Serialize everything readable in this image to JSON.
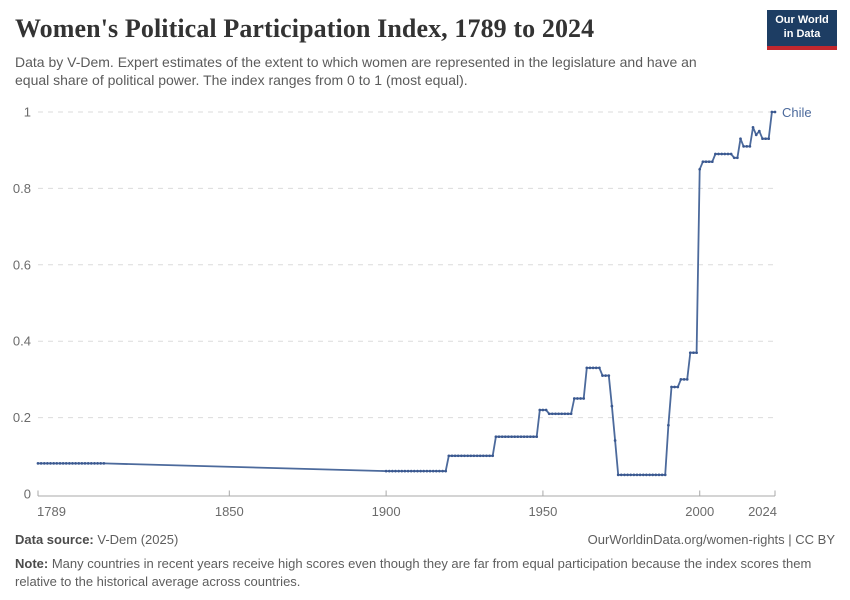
{
  "header": {
    "title": "Women's Political Participation Index, 1789 to 2024",
    "subtitle_lines": [
      "Data by V-Dem. Expert estimates of the extent to which women are represented in the legislature and have an",
      "equal share of political power. The index ranges from 0 to 1 (most equal)."
    ]
  },
  "logo": {
    "line1": "Our World",
    "line2": "in Data",
    "bg_color": "#1d3d63",
    "bar_color": "#c1272d"
  },
  "chart_data": {
    "type": "line",
    "title": "Women's Political Participation Index, 1789 to 2024",
    "xlabel": "",
    "ylabel": "",
    "xlim": [
      1789,
      2024
    ],
    "ylim": [
      0,
      1
    ],
    "grid": "horizontal-dashed",
    "legend_position": "end-of-line",
    "x_ticks": [
      {
        "year": 1789,
        "label": "1789",
        "align": "start"
      },
      {
        "year": 1850,
        "label": "1850",
        "align": "middle"
      },
      {
        "year": 1900,
        "label": "1900",
        "align": "middle"
      },
      {
        "year": 1950,
        "label": "1950",
        "align": "middle"
      },
      {
        "year": 2000,
        "label": "2000",
        "align": "middle"
      },
      {
        "year": 2024,
        "label": "2024",
        "align": "end"
      }
    ],
    "y_ticks": [
      {
        "value": 0,
        "label": "0"
      },
      {
        "value": 0.2,
        "label": "0.2"
      },
      {
        "value": 0.4,
        "label": "0.4"
      },
      {
        "value": 0.6,
        "label": "0.6"
      },
      {
        "value": 0.8,
        "label": "0.8"
      },
      {
        "value": 1,
        "label": "1"
      }
    ],
    "series": [
      {
        "name": "Chile",
        "color": "#4c6a9c",
        "marker_color": "#3a5890",
        "resolution": "annual (flat segments listed as from/to year with index value)",
        "segments": [
          {
            "from": 1789,
            "to": 1810,
            "value": 0.08
          },
          {
            "from": 1900,
            "to": 1919,
            "value": 0.06
          },
          {
            "from": 1920,
            "to": 1934,
            "value": 0.1
          },
          {
            "from": 1935,
            "to": 1948,
            "value": 0.15
          },
          {
            "from": 1949,
            "to": 1951,
            "value": 0.22
          },
          {
            "from": 1952,
            "to": 1959,
            "value": 0.21
          },
          {
            "from": 1960,
            "to": 1963,
            "value": 0.25
          },
          {
            "from": 1964,
            "to": 1968,
            "value": 0.33
          },
          {
            "from": 1969,
            "to": 1971,
            "value": 0.31
          },
          {
            "from": 1972,
            "to": 1972,
            "value": 0.23
          },
          {
            "from": 1973,
            "to": 1973,
            "value": 0.14
          },
          {
            "from": 1974,
            "to": 1988,
            "value": 0.05
          },
          {
            "from": 1989,
            "to": 1989,
            "value": 0.05
          },
          {
            "from": 1990,
            "to": 1990,
            "value": 0.18
          },
          {
            "from": 1991,
            "to": 1993,
            "value": 0.28
          },
          {
            "from": 1994,
            "to": 1996,
            "value": 0.3
          },
          {
            "from": 1997,
            "to": 1999,
            "value": 0.37
          },
          {
            "from": 2000,
            "to": 2000,
            "value": 0.85
          },
          {
            "from": 2001,
            "to": 2004,
            "value": 0.87
          },
          {
            "from": 2005,
            "to": 2010,
            "value": 0.89
          },
          {
            "from": 2011,
            "to": 2012,
            "value": 0.88
          },
          {
            "from": 2013,
            "to": 2013,
            "value": 0.93
          },
          {
            "from": 2014,
            "to": 2016,
            "value": 0.91
          },
          {
            "from": 2017,
            "to": 2017,
            "value": 0.96
          },
          {
            "from": 2018,
            "to": 2018,
            "value": 0.94
          },
          {
            "from": 2019,
            "to": 2019,
            "value": 0.95
          },
          {
            "from": 2020,
            "to": 2022,
            "value": 0.93
          },
          {
            "from": 2023,
            "to": 2024,
            "value": 1.0
          }
        ]
      }
    ],
    "end_label": "Chile"
  },
  "footer": {
    "source_label": "Data source:",
    "source_value": " V-Dem (2025)",
    "link": "OurWorldinData.org/women-rights | CC BY",
    "note_label": "Note:",
    "note_lines": [
      " Many countries in recent years receive high scores even though they are far from equal participation because the index scores them",
      "relative to the historical average across countries."
    ]
  }
}
